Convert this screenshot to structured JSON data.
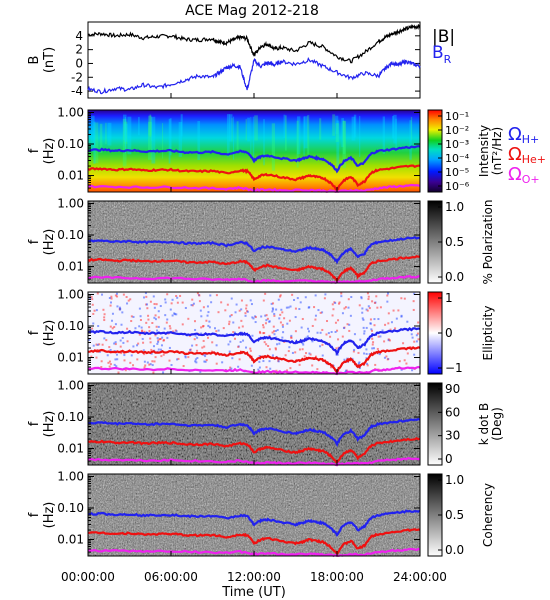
{
  "chart_data": {
    "type": "line",
    "title": "ACE Mag 2012-218",
    "xlabel": "Time (UT)",
    "x_ticks": [
      "00:00:00",
      "06:00:00",
      "12:00:00",
      "18:00:00",
      "24:00:00"
    ],
    "x_tick_hours": [
      0,
      6,
      12,
      18,
      24
    ],
    "xlim_hours": [
      0,
      24
    ],
    "top_panel": {
      "ylabel_line1": "B",
      "ylabel_line2": "(nT)",
      "yticks": [
        "4",
        "2",
        "0",
        "-2",
        "-4"
      ],
      "ytick_values": [
        4,
        2,
        0,
        -2,
        -4
      ],
      "ylim": [
        -5,
        6
      ],
      "legend": [
        {
          "label": "|B|",
          "color": "#000000"
        },
        {
          "label": "B",
          "sub": "R",
          "color": "#2222ee"
        }
      ],
      "series": [
        {
          "name": "|B|",
          "color": "#000000",
          "x_hours": [
            0,
            1,
            2,
            3,
            4,
            5,
            6,
            7,
            8,
            9,
            9.5,
            10,
            10.5,
            11,
            11.5,
            12,
            12.5,
            13,
            13.5,
            14,
            15,
            16,
            17,
            18,
            19,
            20,
            21,
            21.5,
            22,
            22.5,
            23,
            23.5,
            24
          ],
          "values": [
            4.2,
            4.3,
            4.0,
            4.2,
            3.7,
            3.9,
            4.0,
            3.5,
            3.4,
            3.6,
            3.1,
            3.0,
            3.4,
            3.8,
            3.6,
            1.2,
            2.5,
            2.8,
            2.1,
            2.3,
            1.8,
            3.0,
            2.4,
            1.0,
            0.3,
            1.6,
            3.2,
            3.8,
            4.3,
            4.7,
            5.0,
            5.3,
            5.4
          ]
        },
        {
          "name": "B_R",
          "color": "#2222ee",
          "x_hours": [
            0,
            1,
            2,
            3,
            4,
            5,
            6,
            7,
            8,
            9,
            9.5,
            10,
            10.5,
            11,
            11.5,
            12,
            12.5,
            13,
            13.5,
            14,
            15,
            16,
            17,
            18,
            19,
            20,
            21,
            21.5,
            22,
            22.5,
            23,
            23.5,
            24
          ],
          "values": [
            -3.7,
            -4.1,
            -3.6,
            -3.8,
            -3.1,
            -3.5,
            -3.0,
            -2.4,
            -1.8,
            -2.0,
            -1.3,
            -0.6,
            -0.3,
            -0.5,
            -3.8,
            0.4,
            -0.4,
            0.1,
            -0.2,
            0.3,
            -0.1,
            0.5,
            -0.4,
            -1.3,
            -2.1,
            -1.4,
            -1.8,
            -0.7,
            0.1,
            -0.2,
            0.3,
            -0.1,
            -0.4
          ]
        }
      ]
    },
    "spectrogram_panels": [
      {
        "key": "intensity",
        "ylabel_line1": "f",
        "ylabel_line2": "(Hz)",
        "colormap": "rainbow",
        "colorbar_label": "Intensity",
        "colorbar_units": "(nT²/Hz)",
        "colorbar_ticks": [
          "10⁻¹",
          "10⁻²",
          "10⁻³",
          "10⁻⁴",
          "10⁻⁵",
          "10⁻⁶"
        ]
      },
      {
        "key": "polarization",
        "ylabel_line1": "f",
        "ylabel_line2": "(Hz)",
        "colormap": "gray",
        "colorbar_label": "% Polarization",
        "colorbar_ticks": [
          "1.0",
          "0.5",
          "0.0"
        ]
      },
      {
        "key": "ellipticity",
        "ylabel_line1": "f",
        "ylabel_line2": "(Hz)",
        "colormap": "bwr",
        "colorbar_label": "Ellipticity",
        "colorbar_ticks": [
          "1",
          "0",
          "−1"
        ]
      },
      {
        "key": "kdotb",
        "ylabel_line1": "f",
        "ylabel_line2": "(Hz)",
        "colormap": "gray",
        "colorbar_label": "k dot B",
        "colorbar_units": "(Deg)",
        "colorbar_ticks": [
          "90",
          "60",
          "30",
          "0"
        ]
      },
      {
        "key": "coherency",
        "ylabel_line1": "f",
        "ylabel_line2": "(Hz)",
        "colormap": "gray",
        "colorbar_label": "Coherency",
        "colorbar_ticks": [
          "1.0",
          "0.5",
          "0.0"
        ]
      }
    ],
    "freq_ticks": [
      "1.00",
      "0.10",
      "0.01"
    ],
    "freq_tick_values": [
      1.0,
      0.1,
      0.01
    ],
    "freq_range_hz": [
      0.003,
      1.2
    ],
    "gyro_legend": [
      {
        "symbol": "Ω",
        "sub": "H+",
        "color": "#2222ee"
      },
      {
        "symbol": "Ω",
        "sub": "He+",
        "color": "#ee1111"
      },
      {
        "symbol": "Ω",
        "sub": "O+",
        "color": "#ee22ee"
      }
    ],
    "gyro_series": [
      {
        "name": "H+",
        "color": "#2222ee",
        "x_hours": [
          0,
          1,
          2,
          3,
          4,
          5,
          6,
          7,
          8,
          9,
          10,
          11,
          11.5,
          12,
          12.5,
          13,
          14,
          15,
          15.5,
          16,
          16.5,
          17,
          17.5,
          18,
          18.5,
          19,
          19.5,
          20,
          20.5,
          21,
          22,
          23,
          24
        ],
        "values": [
          0.064,
          0.066,
          0.061,
          0.064,
          0.058,
          0.06,
          0.061,
          0.055,
          0.054,
          0.056,
          0.047,
          0.058,
          0.055,
          0.03,
          0.04,
          0.043,
          0.035,
          0.03,
          0.034,
          0.04,
          0.036,
          0.033,
          0.024,
          0.014,
          0.028,
          0.036,
          0.02,
          0.026,
          0.05,
          0.06,
          0.068,
          0.078,
          0.082
        ]
      },
      {
        "name": "He+",
        "color": "#ee1111",
        "x_hours": [
          0,
          1,
          2,
          3,
          4,
          5,
          6,
          7,
          8,
          9,
          10,
          11,
          11.5,
          12,
          12.5,
          13,
          14,
          15,
          15.5,
          16,
          16.5,
          17,
          17.5,
          18,
          18.5,
          19,
          19.5,
          20,
          20.5,
          21,
          22,
          23,
          24
        ],
        "values": [
          0.016,
          0.0165,
          0.0152,
          0.016,
          0.0145,
          0.015,
          0.0152,
          0.0138,
          0.0135,
          0.014,
          0.0118,
          0.0145,
          0.0138,
          0.0075,
          0.01,
          0.0108,
          0.0088,
          0.0075,
          0.0085,
          0.01,
          0.009,
          0.0083,
          0.006,
          0.0035,
          0.007,
          0.009,
          0.005,
          0.0065,
          0.0125,
          0.015,
          0.017,
          0.0195,
          0.0205
        ]
      },
      {
        "name": "O+",
        "color": "#ee22ee",
        "x_hours": [
          0,
          2,
          4,
          6,
          8,
          10,
          11,
          12,
          13,
          14,
          16,
          17,
          18,
          19,
          20,
          21,
          22,
          23,
          24
        ],
        "values": [
          0.0045,
          0.0044,
          0.0042,
          0.0043,
          0.004,
          0.0038,
          0.0041,
          0.0034,
          0.0036,
          0.0034,
          0.0035,
          0.0033,
          0.0031,
          0.0034,
          0.0033,
          0.004,
          0.0044,
          0.0047,
          0.0048
        ]
      }
    ]
  }
}
